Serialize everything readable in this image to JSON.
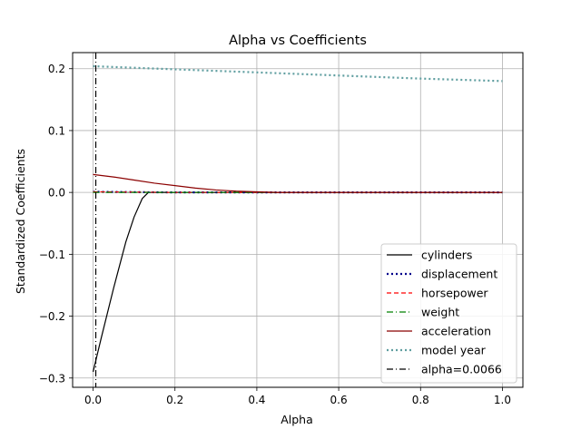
{
  "chart_data": {
    "type": "line",
    "title": "Alpha vs Coefficients",
    "xlabel": "Alpha",
    "ylabel": "Standardized Coefficients",
    "xlim": [
      -0.05,
      1.05
    ],
    "ylim": [
      -0.315,
      0.226
    ],
    "xticks": [
      0.0,
      0.2,
      0.4,
      0.6,
      0.8,
      1.0
    ],
    "xtick_labels": [
      "0.0",
      "0.2",
      "0.4",
      "0.6",
      "0.8",
      "1.0"
    ],
    "yticks": [
      -0.3,
      -0.2,
      -0.1,
      0.0,
      0.1,
      0.2
    ],
    "ytick_labels": [
      "−0.3",
      "−0.2",
      "−0.1",
      "0.0",
      "0.1",
      "0.2"
    ],
    "grid": true,
    "legend_position": "lower-right",
    "series": [
      {
        "name": "cylinders",
        "color": "#000000",
        "dash": "solid",
        "points": [
          [
            0.0,
            -0.29
          ],
          [
            0.02,
            -0.235
          ],
          [
            0.05,
            -0.155
          ],
          [
            0.08,
            -0.08
          ],
          [
            0.1,
            -0.04
          ],
          [
            0.12,
            -0.01
          ],
          [
            0.135,
            0.0
          ],
          [
            0.15,
            0.0
          ],
          [
            0.3,
            0.0
          ],
          [
            0.5,
            0.0
          ],
          [
            0.7,
            0.0
          ],
          [
            1.0,
            0.0
          ]
        ]
      },
      {
        "name": "displacement",
        "color": "#00008b",
        "dash": "dotted",
        "points": [
          [
            0.0,
            0.001
          ],
          [
            0.2,
            0.0
          ],
          [
            0.5,
            0.0
          ],
          [
            1.0,
            0.0
          ]
        ]
      },
      {
        "name": "horsepower",
        "color": "#ff0000",
        "dash": "dashed",
        "points": [
          [
            0.0,
            0.001
          ],
          [
            0.2,
            0.0
          ],
          [
            0.5,
            0.0
          ],
          [
            1.0,
            0.0
          ]
        ]
      },
      {
        "name": "weight",
        "color": "#008000",
        "dash": "dashdot",
        "points": [
          [
            0.0,
            0.0
          ],
          [
            0.2,
            0.0
          ],
          [
            0.5,
            0.0
          ],
          [
            1.0,
            0.0
          ]
        ]
      },
      {
        "name": "acceleration",
        "color": "#8b0000",
        "dash": "solid",
        "points": [
          [
            0.0,
            0.029
          ],
          [
            0.05,
            0.025
          ],
          [
            0.1,
            0.02
          ],
          [
            0.15,
            0.015
          ],
          [
            0.2,
            0.011
          ],
          [
            0.25,
            0.007
          ],
          [
            0.3,
            0.004
          ],
          [
            0.35,
            0.002
          ],
          [
            0.4,
            0.001
          ],
          [
            0.45,
            0.0
          ],
          [
            0.6,
            0.0
          ],
          [
            1.0,
            0.0
          ]
        ]
      },
      {
        "name": "model year",
        "color": "#5f9ea0",
        "dash": "dotted",
        "points": [
          [
            0.0,
            0.204
          ],
          [
            0.2,
            0.199
          ],
          [
            0.4,
            0.194
          ],
          [
            0.6,
            0.189
          ],
          [
            0.8,
            0.184
          ],
          [
            1.0,
            0.18
          ]
        ]
      }
    ],
    "vline": {
      "name": "alpha=0.0066",
      "x": 0.0066,
      "color": "#000000",
      "dash": "dashdot"
    }
  }
}
